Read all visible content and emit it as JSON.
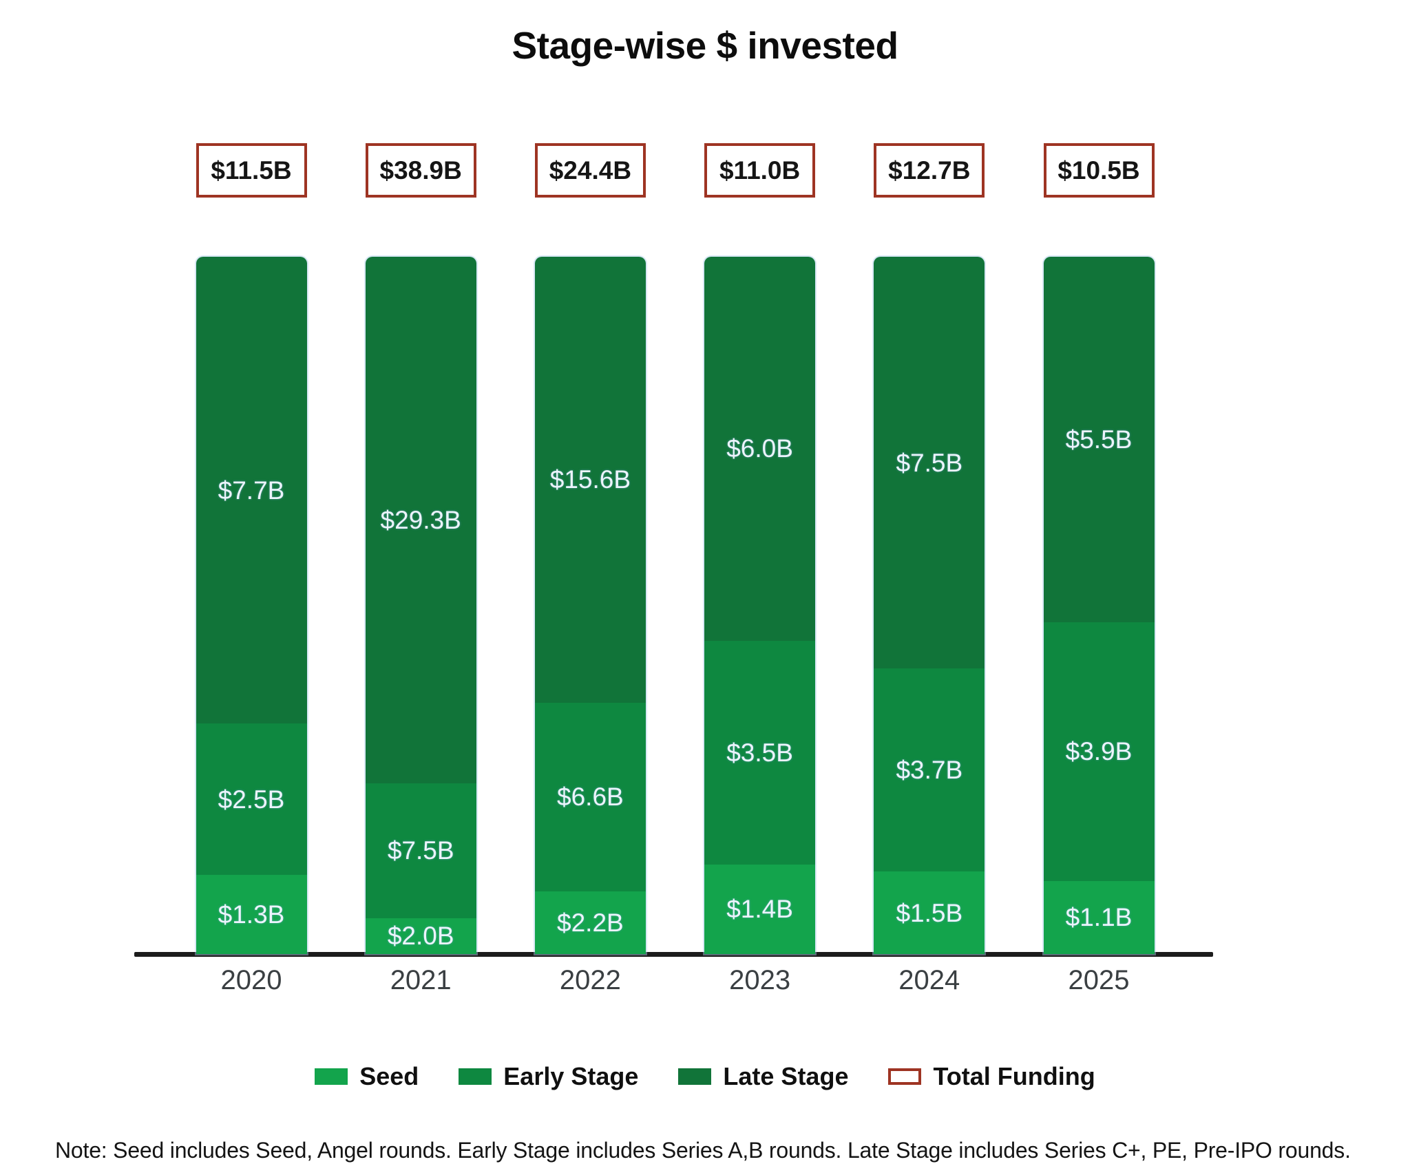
{
  "chart_data": {
    "type": "bar",
    "variant": "stacked-100pct-column",
    "title": "Stage-wise $ invested",
    "categories": [
      "2020",
      "2021",
      "2022",
      "2023",
      "2024",
      "2025"
    ],
    "series": [
      {
        "name": "Seed",
        "color": "#13a44c",
        "values": [
          1.3,
          2.0,
          2.2,
          1.4,
          1.5,
          1.1
        ],
        "labels": [
          "$1.3B",
          "$2.0B",
          "$2.2B",
          "$1.4B",
          "$1.5B",
          "$1.1B"
        ]
      },
      {
        "name": "Early Stage",
        "color": "#0e8840",
        "values": [
          2.5,
          7.5,
          6.6,
          3.5,
          3.7,
          3.9
        ],
        "labels": [
          "$2.5B",
          "$7.5B",
          "$6.6B",
          "$3.5B",
          "$3.7B",
          "$3.9B"
        ]
      },
      {
        "name": "Late Stage",
        "color": "#117439",
        "values": [
          7.7,
          29.3,
          15.6,
          6.0,
          7.5,
          5.5
        ],
        "labels": [
          "$7.7B",
          "$29.3B",
          "$15.6B",
          "$6.0B",
          "$7.5B",
          "$5.5B"
        ]
      }
    ],
    "totals": {
      "name": "Total Funding",
      "values": [
        11.5,
        38.9,
        24.4,
        11.0,
        12.7,
        10.5
      ],
      "labels": [
        "$11.5B",
        "$38.9B",
        "$24.4B",
        "$11.0B",
        "$12.7B",
        "$10.5B"
      ],
      "border_color": "#9e3423"
    },
    "legend": [
      {
        "label": "Seed",
        "swatch": "seed"
      },
      {
        "label": "Early Stage",
        "swatch": "early"
      },
      {
        "label": "Late Stage",
        "swatch": "late"
      },
      {
        "label": "Total Funding",
        "swatch": "total"
      }
    ],
    "axis_color": "#1c1c1c",
    "value_label_color": "#ecf4fd",
    "legend_position": "bottom",
    "note": "Note: Seed includes Seed, Angel rounds. Early Stage includes Series A,B rounds. Late Stage includes Series C+, PE, Pre-IPO rounds."
  }
}
